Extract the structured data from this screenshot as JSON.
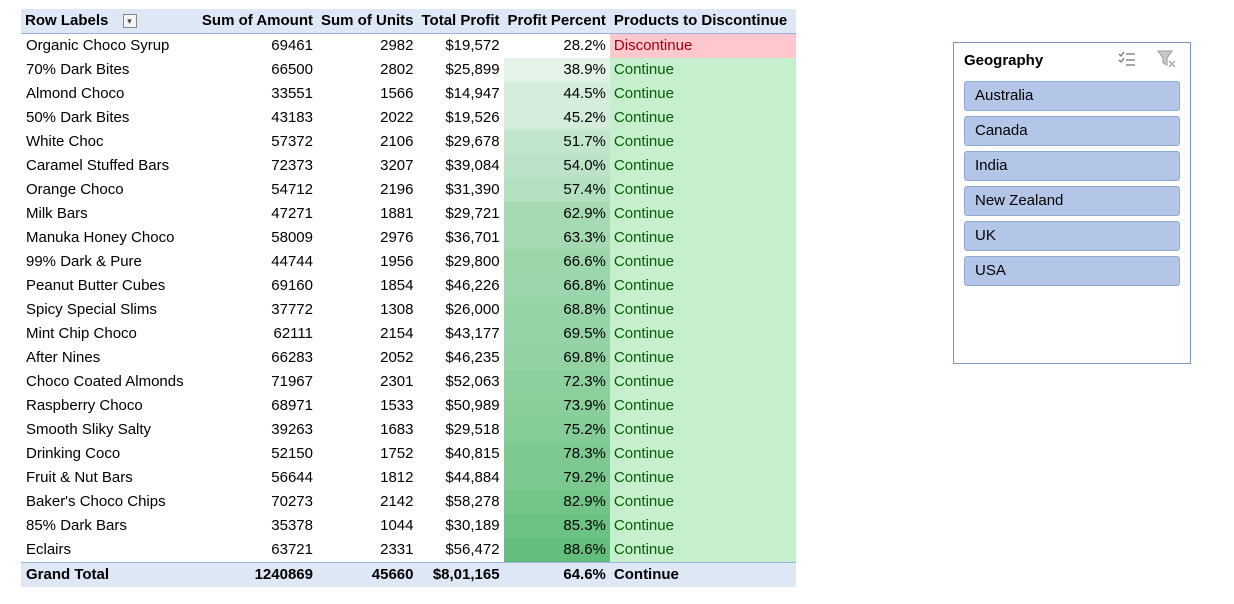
{
  "pivot": {
    "headers": {
      "row_labels": "Row Labels",
      "amount": "Sum of Amount",
      "units": "Sum of Units",
      "profit": "Total Profit",
      "percent": "Profit Percent",
      "discontinue": "Products to Discontinue"
    },
    "rows": [
      {
        "name": "Organic Choco Syrup",
        "amount": "69461",
        "units": "2982",
        "profit": "$19,572",
        "pct": "28.2%",
        "status": "Discontinue",
        "pct_value": 28.2
      },
      {
        "name": "70% Dark Bites",
        "amount": "66500",
        "units": "2802",
        "profit": "$25,899",
        "pct": "38.9%",
        "status": "Continue",
        "pct_value": 38.9
      },
      {
        "name": "Almond Choco",
        "amount": "33551",
        "units": "1566",
        "profit": "$14,947",
        "pct": "44.5%",
        "status": "Continue",
        "pct_value": 44.5
      },
      {
        "name": "50% Dark Bites",
        "amount": "43183",
        "units": "2022",
        "profit": "$19,526",
        "pct": "45.2%",
        "status": "Continue",
        "pct_value": 45.2
      },
      {
        "name": "White Choc",
        "amount": "57372",
        "units": "2106",
        "profit": "$29,678",
        "pct": "51.7%",
        "status": "Continue",
        "pct_value": 51.7
      },
      {
        "name": "Caramel Stuffed Bars",
        "amount": "72373",
        "units": "3207",
        "profit": "$39,084",
        "pct": "54.0%",
        "status": "Continue",
        "pct_value": 54.0
      },
      {
        "name": "Orange Choco",
        "amount": "54712",
        "units": "2196",
        "profit": "$31,390",
        "pct": "57.4%",
        "status": "Continue",
        "pct_value": 57.4
      },
      {
        "name": "Milk Bars",
        "amount": "47271",
        "units": "1881",
        "profit": "$29,721",
        "pct": "62.9%",
        "status": "Continue",
        "pct_value": 62.9
      },
      {
        "name": "Manuka Honey Choco",
        "amount": "58009",
        "units": "2976",
        "profit": "$36,701",
        "pct": "63.3%",
        "status": "Continue",
        "pct_value": 63.3
      },
      {
        "name": "99% Dark & Pure",
        "amount": "44744",
        "units": "1956",
        "profit": "$29,800",
        "pct": "66.6%",
        "status": "Continue",
        "pct_value": 66.6
      },
      {
        "name": "Peanut Butter Cubes",
        "amount": "69160",
        "units": "1854",
        "profit": "$46,226",
        "pct": "66.8%",
        "status": "Continue",
        "pct_value": 66.8
      },
      {
        "name": "Spicy Special Slims",
        "amount": "37772",
        "units": "1308",
        "profit": "$26,000",
        "pct": "68.8%",
        "status": "Continue",
        "pct_value": 68.8
      },
      {
        "name": "Mint Chip Choco",
        "amount": "62111",
        "units": "2154",
        "profit": "$43,177",
        "pct": "69.5%",
        "status": "Continue",
        "pct_value": 69.5
      },
      {
        "name": "After Nines",
        "amount": "66283",
        "units": "2052",
        "profit": "$46,235",
        "pct": "69.8%",
        "status": "Continue",
        "pct_value": 69.8
      },
      {
        "name": "Choco Coated Almonds",
        "amount": "71967",
        "units": "2301",
        "profit": "$52,063",
        "pct": "72.3%",
        "status": "Continue",
        "pct_value": 72.3
      },
      {
        "name": "Raspberry Choco",
        "amount": "68971",
        "units": "1533",
        "profit": "$50,989",
        "pct": "73.9%",
        "status": "Continue",
        "pct_value": 73.9
      },
      {
        "name": "Smooth Sliky Salty",
        "amount": "39263",
        "units": "1683",
        "profit": "$29,518",
        "pct": "75.2%",
        "status": "Continue",
        "pct_value": 75.2
      },
      {
        "name": "Drinking Coco",
        "amount": "52150",
        "units": "1752",
        "profit": "$40,815",
        "pct": "78.3%",
        "status": "Continue",
        "pct_value": 78.3
      },
      {
        "name": "Fruit & Nut Bars",
        "amount": "56644",
        "units": "1812",
        "profit": "$44,884",
        "pct": "79.2%",
        "status": "Continue",
        "pct_value": 79.2
      },
      {
        "name": "Baker's Choco Chips",
        "amount": "70273",
        "units": "2142",
        "profit": "$58,278",
        "pct": "82.9%",
        "status": "Continue",
        "pct_value": 82.9
      },
      {
        "name": "85% Dark Bars",
        "amount": "35378",
        "units": "1044",
        "profit": "$30,189",
        "pct": "85.3%",
        "status": "Continue",
        "pct_value": 85.3
      },
      {
        "name": "Eclairs",
        "amount": "63721",
        "units": "2331",
        "profit": "$56,472",
        "pct": "88.6%",
        "status": "Continue",
        "pct_value": 88.6
      }
    ],
    "total": {
      "label": "Grand Total",
      "amount": "1240869",
      "units": "45660",
      "profit": "$8,01,165",
      "pct": "64.6%",
      "status": "Continue"
    },
    "colors": {
      "header_bg": "#dde7f5",
      "continue_bg": "#c6efce",
      "continue_text": "#006100",
      "discontinue_bg": "#ffc7ce",
      "discontinue_text": "#9c0006",
      "scale_low": "#ffffff",
      "scale_high": "#63be7b"
    }
  },
  "slicer": {
    "title": "Geography",
    "items": [
      "Australia",
      "Canada",
      "India",
      "New Zealand",
      "UK",
      "USA"
    ],
    "icons": {
      "multi_select": "multi-select-icon",
      "clear_filter": "clear-filter-icon"
    },
    "item_color": "#b4c6e7"
  }
}
